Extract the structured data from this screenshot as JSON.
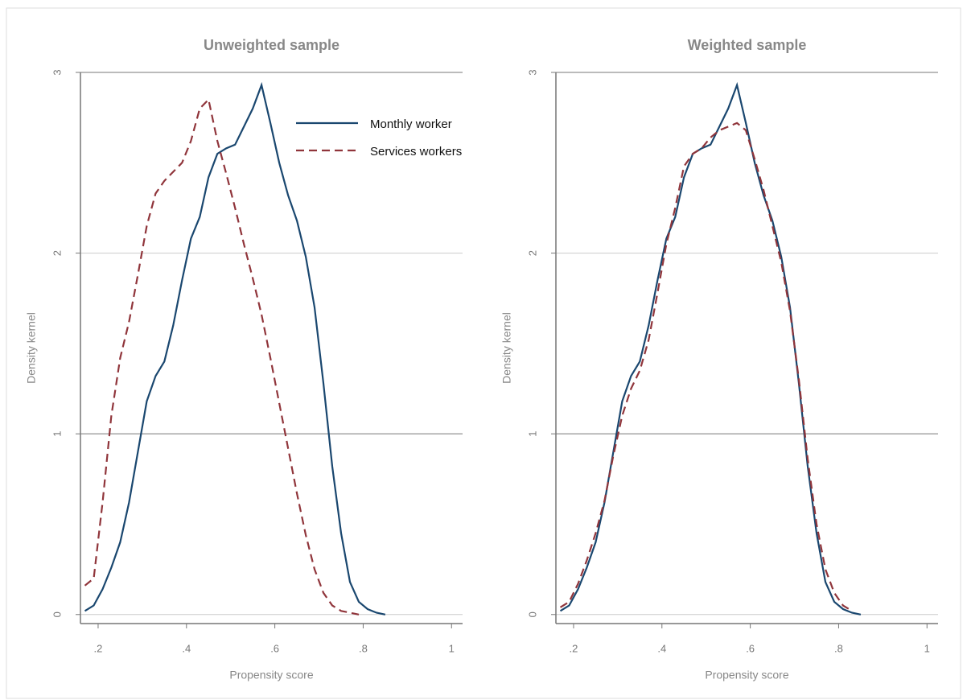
{
  "chart_data": [
    {
      "type": "line",
      "title": "Unweighted sample",
      "xlabel": "Propensity score",
      "ylabel": "Density kernel",
      "x": [
        0.17,
        0.19,
        0.21,
        0.23,
        0.25,
        0.27,
        0.29,
        0.31,
        0.33,
        0.35,
        0.37,
        0.39,
        0.41,
        0.43,
        0.45,
        0.47,
        0.49,
        0.51,
        0.53,
        0.55,
        0.57,
        0.59,
        0.61,
        0.63,
        0.65,
        0.67,
        0.69,
        0.71,
        0.73,
        0.75,
        0.77,
        0.79,
        0.81,
        0.83,
        0.85
      ],
      "series": [
        {
          "name": "Monthly worker",
          "color": "#1a476f",
          "style": "solid",
          "values": [
            0.02,
            0.05,
            0.14,
            0.26,
            0.4,
            0.62,
            0.9,
            1.18,
            1.32,
            1.4,
            1.6,
            1.85,
            2.08,
            2.2,
            2.42,
            2.55,
            2.58,
            2.6,
            2.7,
            2.8,
            2.93,
            2.72,
            2.5,
            2.32,
            2.18,
            1.98,
            1.7,
            1.28,
            0.82,
            0.45,
            0.18,
            0.07,
            0.03,
            0.01,
            0
          ]
        },
        {
          "name": "Services workers",
          "color": "#90353b",
          "style": "dashed",
          "values": [
            0.16,
            0.2,
            0.62,
            1.1,
            1.42,
            1.62,
            1.88,
            2.15,
            2.33,
            2.4,
            2.45,
            2.5,
            2.62,
            2.8,
            2.85,
            2.62,
            2.44,
            2.25,
            2.05,
            1.86,
            1.66,
            1.42,
            1.17,
            0.92,
            0.67,
            0.44,
            0.25,
            0.12,
            0.05,
            0.02,
            0.01,
            0,
            null,
            null,
            null
          ]
        }
      ],
      "xlim": [
        0.16,
        1.025
      ],
      "xticks": [
        {
          "value": 0.2,
          "label": ".2"
        },
        {
          "value": 0.4,
          "label": ".4"
        },
        {
          "value": 0.6,
          "label": ".6"
        },
        {
          "value": 0.8,
          "label": ".8"
        },
        1
      ],
      "ylim": [
        -0.05,
        3
      ],
      "yticks": [
        0,
        1,
        2,
        3
      ],
      "grid": true,
      "legend": "upper right"
    },
    {
      "type": "line",
      "title": "Weighted sample",
      "xlabel": "Propensity score",
      "ylabel": "Density kernel",
      "x": [
        0.17,
        0.19,
        0.21,
        0.23,
        0.25,
        0.27,
        0.29,
        0.31,
        0.33,
        0.35,
        0.37,
        0.39,
        0.41,
        0.43,
        0.45,
        0.47,
        0.49,
        0.51,
        0.53,
        0.55,
        0.57,
        0.59,
        0.61,
        0.63,
        0.65,
        0.67,
        0.69,
        0.71,
        0.73,
        0.75,
        0.77,
        0.79,
        0.81,
        0.83,
        0.85
      ],
      "series": [
        {
          "name": "Monthly worker",
          "color": "#1a476f",
          "style": "solid",
          "values": [
            0.02,
            0.05,
            0.14,
            0.26,
            0.4,
            0.62,
            0.9,
            1.18,
            1.32,
            1.4,
            1.6,
            1.85,
            2.08,
            2.2,
            2.42,
            2.55,
            2.58,
            2.6,
            2.7,
            2.8,
            2.93,
            2.72,
            2.5,
            2.32,
            2.18,
            1.98,
            1.7,
            1.28,
            0.82,
            0.45,
            0.18,
            0.07,
            0.03,
            0.01,
            0
          ]
        },
        {
          "name": "Services workers",
          "color": "#90353b",
          "style": "dashed",
          "values": [
            0.04,
            0.07,
            0.17,
            0.3,
            0.45,
            0.63,
            0.88,
            1.1,
            1.25,
            1.35,
            1.52,
            1.78,
            2.05,
            2.25,
            2.48,
            2.55,
            2.58,
            2.64,
            2.68,
            2.7,
            2.72,
            2.68,
            2.52,
            2.35,
            2.15,
            1.95,
            1.68,
            1.3,
            0.86,
            0.5,
            0.25,
            0.12,
            0.05,
            0.02,
            null
          ]
        }
      ],
      "xlim": [
        0.16,
        1.025
      ],
      "xticks": [
        {
          "value": 0.2,
          "label": ".2"
        },
        {
          "value": 0.4,
          "label": ".4"
        },
        {
          "value": 0.6,
          "label": ".6"
        },
        {
          "value": 0.8,
          "label": ".8"
        },
        1
      ],
      "ylim": [
        -0.05,
        3
      ],
      "yticks": [
        0,
        1,
        2,
        3
      ],
      "grid": true
    }
  ]
}
